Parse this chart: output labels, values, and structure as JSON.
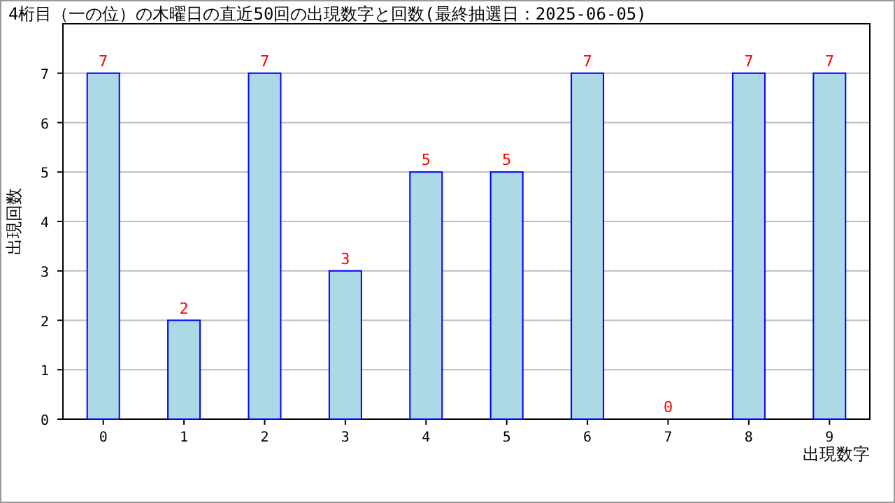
{
  "chart_data": {
    "type": "bar",
    "title": "4桁目（一の位）の木曜日の直近50回の出現数字と回数(最終抽選日：2025-06-05)",
    "xlabel": "出現数字",
    "ylabel": "出現回数",
    "categories": [
      "0",
      "1",
      "2",
      "3",
      "4",
      "5",
      "6",
      "7",
      "8",
      "9"
    ],
    "values": [
      7,
      2,
      7,
      3,
      5,
      5,
      7,
      0,
      7,
      7
    ],
    "color": "#add8e6",
    "ylim": [
      0,
      8
    ],
    "yticks": [
      0,
      1,
      2,
      3,
      4,
      5,
      6,
      7
    ],
    "grid": "y",
    "data_labels": true
  }
}
